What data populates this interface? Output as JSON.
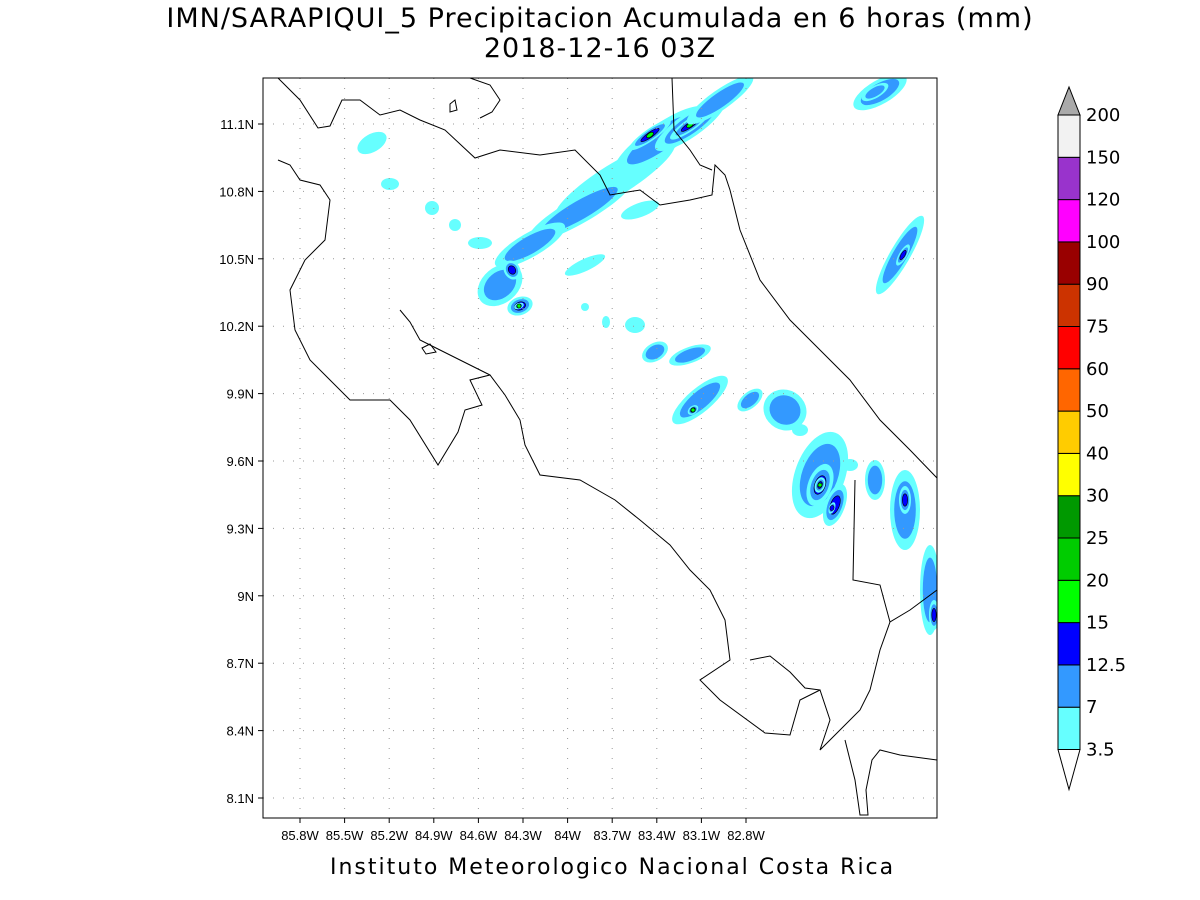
{
  "title": {
    "line1": "IMN/SARAPIQUI_5 Precipitacion Acumulada en 6 horas (mm)",
    "line2": "2018-12-16 03Z"
  },
  "footer": "Instituto Meteorologico Nacional Costa Rica",
  "map": {
    "lon_ticks": [
      "85.8W",
      "85.5W",
      "85.2W",
      "84.9W",
      "84.6W",
      "84.3W",
      "84W",
      "83.7W",
      "83.4W",
      "83.1W",
      "82.8W"
    ],
    "lat_ticks": [
      "11.1N",
      "10.8N",
      "10.5N",
      "10.2N",
      "9.9N",
      "9.6N",
      "9.3N",
      "9N",
      "8.7N",
      "8.4N",
      "8.1N"
    ]
  },
  "colorbar": {
    "labels": [
      "3.5",
      "7",
      "12.5",
      "15",
      "20",
      "25",
      "30",
      "40",
      "50",
      "60",
      "75",
      "90",
      "100",
      "120",
      "150",
      "200"
    ],
    "colors": [
      "#66ffff",
      "#3399ff",
      "#0000ff",
      "#00ff00",
      "#00cc00",
      "#009900",
      "#ffff00",
      "#ffcc00",
      "#ff6600",
      "#ff0000",
      "#cc3300",
      "#990000",
      "#ff00ff",
      "#9933cc",
      "#f2f2f2"
    ],
    "over_color": "#aaaaaa",
    "under_color": "#ffffff"
  }
}
